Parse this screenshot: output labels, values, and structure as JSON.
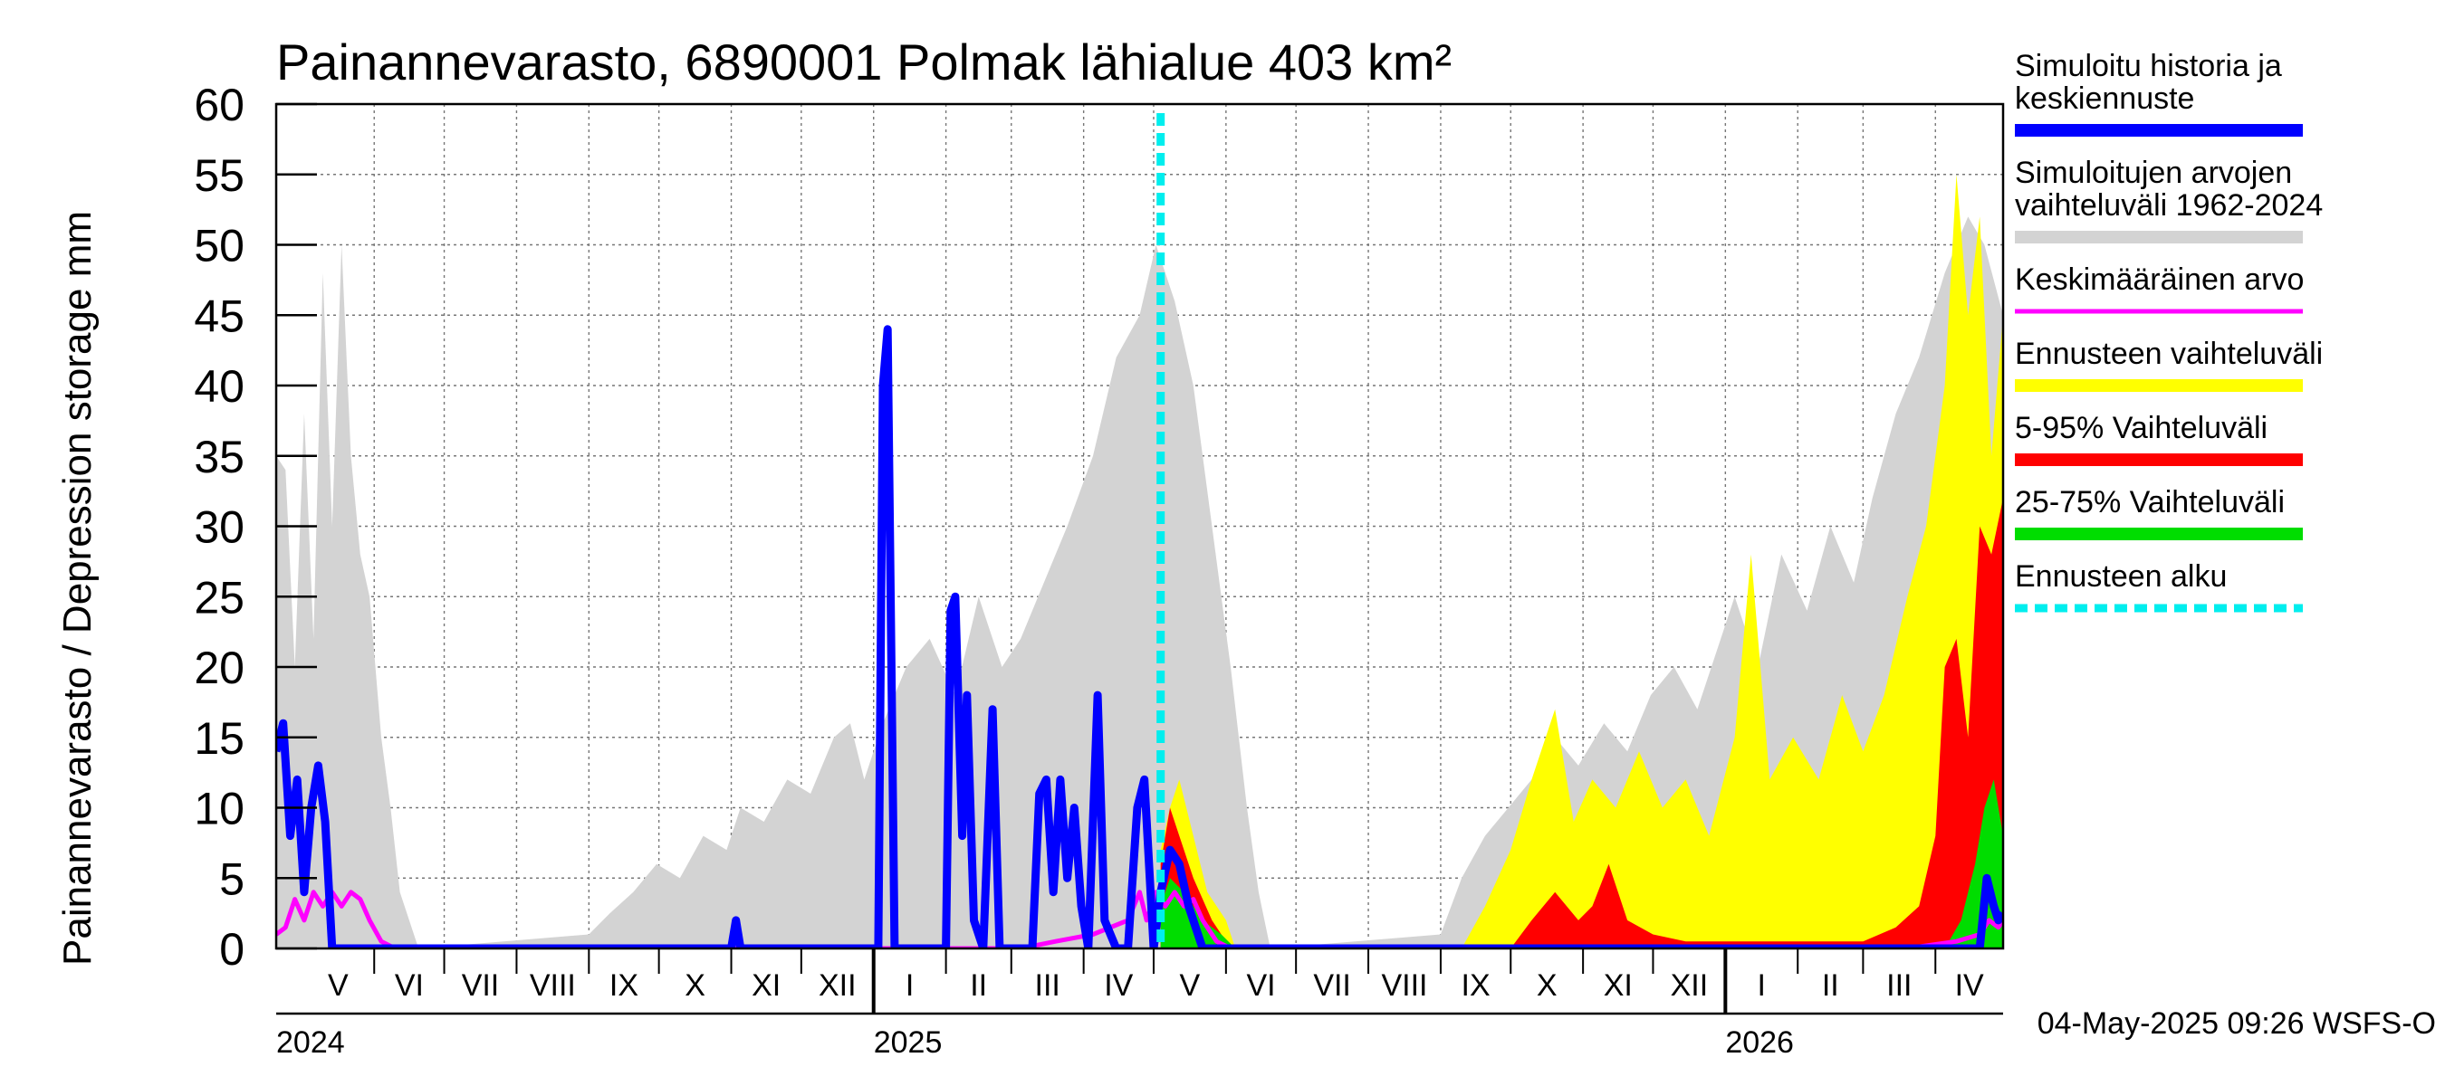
{
  "chart_data": {
    "type": "area",
    "title": "Painannevarasto, 6890001 Polmak lähialue 403 km²",
    "ylabel": "Painannevarasto / Depression storage    mm",
    "ylim": [
      0,
      60
    ],
    "yticks": [
      0,
      5,
      10,
      15,
      20,
      25,
      30,
      35,
      40,
      45,
      50,
      55,
      60
    ],
    "x_range": [
      "2024-04-20",
      "2026-04-30"
    ],
    "forecast_start": "2025-05-04",
    "months": [
      {
        "label": "V",
        "start": "2024-05-01"
      },
      {
        "label": "VI",
        "start": "2024-06-01"
      },
      {
        "label": "VII",
        "start": "2024-07-01"
      },
      {
        "label": "VIII",
        "start": "2024-08-01"
      },
      {
        "label": "IX",
        "start": "2024-09-01"
      },
      {
        "label": "X",
        "start": "2024-10-01"
      },
      {
        "label": "XI",
        "start": "2024-11-01"
      },
      {
        "label": "XII",
        "start": "2024-12-01"
      },
      {
        "label": "I",
        "start": "2025-01-01"
      },
      {
        "label": "II",
        "start": "2025-02-01"
      },
      {
        "label": "III",
        "start": "2025-03-01"
      },
      {
        "label": "IV",
        "start": "2025-04-01"
      },
      {
        "label": "V",
        "start": "2025-05-01"
      },
      {
        "label": "VI",
        "start": "2025-06-01"
      },
      {
        "label": "VII",
        "start": "2025-07-01"
      },
      {
        "label": "VIII",
        "start": "2025-08-01"
      },
      {
        "label": "IX",
        "start": "2025-09-01"
      },
      {
        "label": "X",
        "start": "2025-10-01"
      },
      {
        "label": "XI",
        "start": "2025-11-01"
      },
      {
        "label": "XII",
        "start": "2025-12-01"
      },
      {
        "label": "I",
        "start": "2026-01-01"
      },
      {
        "label": "II",
        "start": "2026-02-01"
      },
      {
        "label": "III",
        "start": "2026-03-01"
      },
      {
        "label": "IV",
        "start": "2026-04-01"
      }
    ],
    "years": [
      {
        "label": "2024",
        "at": "2024-04-20"
      },
      {
        "label": "2025",
        "at": "2025-01-01"
      },
      {
        "label": "2026",
        "at": "2026-01-01"
      }
    ],
    "series": [
      {
        "name": "Simuloitujen arvojen vaihteluväli 1962-2024",
        "kind": "range",
        "color": "#d3d3d3",
        "points": [
          [
            "2024-04-20",
            35
          ],
          [
            "2024-04-24",
            34
          ],
          [
            "2024-04-28",
            20
          ],
          [
            "2024-05-02",
            38
          ],
          [
            "2024-05-06",
            22
          ],
          [
            "2024-05-10",
            48
          ],
          [
            "2024-05-14",
            30
          ],
          [
            "2024-05-18",
            50
          ],
          [
            "2024-05-22",
            35
          ],
          [
            "2024-05-26",
            28
          ],
          [
            "2024-05-30",
            25
          ],
          [
            "2024-06-04",
            15
          ],
          [
            "2024-06-08",
            10
          ],
          [
            "2024-06-12",
            4
          ],
          [
            "2024-06-16",
            2
          ],
          [
            "2024-06-20",
            0
          ],
          [
            "2024-09-01",
            1
          ],
          [
            "2024-09-10",
            2.5
          ],
          [
            "2024-09-20",
            4
          ],
          [
            "2024-09-30",
            6
          ],
          [
            "2024-10-10",
            5
          ],
          [
            "2024-10-20",
            8
          ],
          [
            "2024-10-30",
            7
          ],
          [
            "2024-11-05",
            10
          ],
          [
            "2024-11-15",
            9
          ],
          [
            "2024-11-25",
            12
          ],
          [
            "2024-12-05",
            11
          ],
          [
            "2024-12-15",
            15
          ],
          [
            "2024-12-22",
            16
          ],
          [
            "2024-12-28",
            12
          ],
          [
            "2025-01-05",
            16
          ],
          [
            "2025-01-15",
            20
          ],
          [
            "2025-01-25",
            22
          ],
          [
            "2025-02-05",
            18
          ],
          [
            "2025-02-15",
            25
          ],
          [
            "2025-02-25",
            20
          ],
          [
            "2025-03-05",
            22
          ],
          [
            "2025-03-15",
            26
          ],
          [
            "2025-03-25",
            30
          ],
          [
            "2025-04-05",
            35
          ],
          [
            "2025-04-15",
            42
          ],
          [
            "2025-04-25",
            45
          ],
          [
            "2025-05-02",
            50
          ],
          [
            "2025-05-10",
            46
          ],
          [
            "2025-05-18",
            40
          ],
          [
            "2025-05-26",
            30
          ],
          [
            "2025-06-03",
            20
          ],
          [
            "2025-06-10",
            10
          ],
          [
            "2025-06-15",
            4
          ],
          [
            "2025-06-20",
            0
          ],
          [
            "2025-09-01",
            1
          ],
          [
            "2025-09-10",
            5
          ],
          [
            "2025-09-20",
            8
          ],
          [
            "2025-09-30",
            10
          ],
          [
            "2025-10-10",
            12
          ],
          [
            "2025-10-20",
            15
          ],
          [
            "2025-10-30",
            13
          ],
          [
            "2025-11-10",
            16
          ],
          [
            "2025-11-20",
            14
          ],
          [
            "2025-11-30",
            18
          ],
          [
            "2025-12-10",
            20
          ],
          [
            "2025-12-20",
            17
          ],
          [
            "2025-12-30",
            22
          ],
          [
            "2026-01-05",
            25
          ],
          [
            "2026-01-15",
            20
          ],
          [
            "2026-01-25",
            28
          ],
          [
            "2026-02-05",
            24
          ],
          [
            "2026-02-15",
            30
          ],
          [
            "2026-02-25",
            26
          ],
          [
            "2026-03-05",
            32
          ],
          [
            "2026-03-15",
            38
          ],
          [
            "2026-03-25",
            42
          ],
          [
            "2026-04-05",
            48
          ],
          [
            "2026-04-15",
            52
          ],
          [
            "2026-04-22",
            50
          ],
          [
            "2026-04-30",
            45
          ]
        ]
      },
      {
        "name": "Ennusteen vaihteluväli",
        "kind": "range",
        "color": "#ffff00",
        "points": [
          [
            "2025-05-04",
            7
          ],
          [
            "2025-05-08",
            10
          ],
          [
            "2025-05-12",
            12
          ],
          [
            "2025-05-18",
            8
          ],
          [
            "2025-05-24",
            4
          ],
          [
            "2025-06-01",
            2
          ],
          [
            "2025-06-05",
            0
          ],
          [
            "2025-09-10",
            0
          ],
          [
            "2025-09-20",
            3
          ],
          [
            "2025-10-01",
            7
          ],
          [
            "2025-10-10",
            12
          ],
          [
            "2025-10-20",
            17
          ],
          [
            "2025-10-28",
            9
          ],
          [
            "2025-11-05",
            12
          ],
          [
            "2025-11-15",
            10
          ],
          [
            "2025-11-25",
            14
          ],
          [
            "2025-12-05",
            10
          ],
          [
            "2025-12-15",
            12
          ],
          [
            "2025-12-25",
            8
          ],
          [
            "2026-01-05",
            15
          ],
          [
            "2026-01-12",
            28
          ],
          [
            "2026-01-20",
            12
          ],
          [
            "2026-01-30",
            15
          ],
          [
            "2026-02-10",
            12
          ],
          [
            "2026-02-20",
            18
          ],
          [
            "2026-03-01",
            14
          ],
          [
            "2026-03-10",
            18
          ],
          [
            "2026-03-20",
            25
          ],
          [
            "2026-03-28",
            30
          ],
          [
            "2026-04-05",
            40
          ],
          [
            "2026-04-10",
            55
          ],
          [
            "2026-04-15",
            45
          ],
          [
            "2026-04-20",
            52
          ],
          [
            "2026-04-25",
            35
          ],
          [
            "2026-04-30",
            45
          ]
        ]
      },
      {
        "name": "5-95% Vaihteluväli",
        "kind": "range",
        "color": "#ff0000",
        "points": [
          [
            "2025-05-04",
            6
          ],
          [
            "2025-05-08",
            10
          ],
          [
            "2025-05-12",
            8
          ],
          [
            "2025-05-18",
            5
          ],
          [
            "2025-05-26",
            2
          ],
          [
            "2025-06-03",
            0
          ],
          [
            "2025-10-01",
            0
          ],
          [
            "2025-10-10",
            2
          ],
          [
            "2025-10-20",
            4
          ],
          [
            "2025-10-30",
            2
          ],
          [
            "2025-11-05",
            3
          ],
          [
            "2025-11-12",
            6
          ],
          [
            "2025-11-20",
            2
          ],
          [
            "2025-12-01",
            1
          ],
          [
            "2025-12-15",
            0.5
          ],
          [
            "2026-01-01",
            0.5
          ],
          [
            "2026-03-01",
            0.5
          ],
          [
            "2026-03-15",
            1.5
          ],
          [
            "2026-03-25",
            3
          ],
          [
            "2026-04-01",
            8
          ],
          [
            "2026-04-05",
            20
          ],
          [
            "2026-04-10",
            22
          ],
          [
            "2026-04-15",
            15
          ],
          [
            "2026-04-20",
            30
          ],
          [
            "2026-04-25",
            28
          ],
          [
            "2026-04-30",
            32
          ]
        ]
      },
      {
        "name": "25-75% Vaihteluväli",
        "kind": "range",
        "color": "#00dd00",
        "points": [
          [
            "2025-05-04",
            3
          ],
          [
            "2025-05-08",
            5
          ],
          [
            "2025-05-14",
            4
          ],
          [
            "2025-05-22",
            2
          ],
          [
            "2025-05-30",
            1
          ],
          [
            "2025-06-05",
            0
          ],
          [
            "2026-04-05",
            0
          ],
          [
            "2026-04-12",
            2
          ],
          [
            "2026-04-18",
            6
          ],
          [
            "2026-04-22",
            10
          ],
          [
            "2026-04-26",
            12
          ],
          [
            "2026-04-30",
            8
          ]
        ]
      },
      {
        "name": "Keskimääräinen arvo",
        "kind": "line",
        "color": "#ff00ff",
        "points": [
          [
            "2024-04-20",
            1
          ],
          [
            "2024-04-24",
            1.5
          ],
          [
            "2024-04-28",
            3.5
          ],
          [
            "2024-05-02",
            2
          ],
          [
            "2024-05-06",
            4
          ],
          [
            "2024-05-10",
            3
          ],
          [
            "2024-05-14",
            4
          ],
          [
            "2024-05-18",
            3
          ],
          [
            "2024-05-22",
            4
          ],
          [
            "2024-05-26",
            3.5
          ],
          [
            "2024-05-30",
            2
          ],
          [
            "2024-06-04",
            0.5
          ],
          [
            "2024-06-10",
            0
          ],
          [
            "2025-03-05",
            0
          ],
          [
            "2025-03-20",
            0.5
          ],
          [
            "2025-04-05",
            1
          ],
          [
            "2025-04-20",
            2
          ],
          [
            "2025-04-25",
            4
          ],
          [
            "2025-04-28",
            2
          ],
          [
            "2025-05-02",
            4
          ],
          [
            "2025-05-06",
            3
          ],
          [
            "2025-05-10",
            4
          ],
          [
            "2025-05-14",
            3
          ],
          [
            "2025-05-18",
            3.5
          ],
          [
            "2025-05-22",
            2
          ],
          [
            "2025-05-28",
            0.5
          ],
          [
            "2025-06-03",
            0
          ],
          [
            "2026-03-20",
            0
          ],
          [
            "2026-04-10",
            0.5
          ],
          [
            "2026-04-20",
            1
          ],
          [
            "2026-04-24",
            2
          ],
          [
            "2026-04-28",
            1.5
          ],
          [
            "2026-04-30",
            2
          ]
        ]
      },
      {
        "name": "Simuloitu historia ja keskiennuste",
        "kind": "line",
        "color": "#0000ff",
        "points": [
          [
            "2024-04-20",
            14
          ],
          [
            "2024-04-23",
            16
          ],
          [
            "2024-04-26",
            8
          ],
          [
            "2024-04-29",
            12
          ],
          [
            "2024-05-02",
            4
          ],
          [
            "2024-05-05",
            10
          ],
          [
            "2024-05-08",
            13
          ],
          [
            "2024-05-11",
            9
          ],
          [
            "2024-05-14",
            0
          ],
          [
            "2024-11-01",
            0
          ],
          [
            "2024-11-03",
            2
          ],
          [
            "2024-11-05",
            0
          ],
          [
            "2025-01-03",
            0
          ],
          [
            "2025-01-05",
            40
          ],
          [
            "2025-01-07",
            44
          ],
          [
            "2025-01-10",
            0
          ],
          [
            "2025-02-01",
            0
          ],
          [
            "2025-02-03",
            24
          ],
          [
            "2025-02-05",
            25
          ],
          [
            "2025-02-08",
            8
          ],
          [
            "2025-02-10",
            18
          ],
          [
            "2025-02-13",
            2
          ],
          [
            "2025-02-17",
            0
          ],
          [
            "2025-02-21",
            17
          ],
          [
            "2025-02-24",
            0
          ],
          [
            "2025-03-10",
            0
          ],
          [
            "2025-03-13",
            11
          ],
          [
            "2025-03-16",
            12
          ],
          [
            "2025-03-19",
            4
          ],
          [
            "2025-03-22",
            12
          ],
          [
            "2025-03-25",
            5
          ],
          [
            "2025-03-28",
            10
          ],
          [
            "2025-03-31",
            3
          ],
          [
            "2025-04-03",
            0
          ],
          [
            "2025-04-07",
            18
          ],
          [
            "2025-04-10",
            2
          ],
          [
            "2025-04-15",
            0
          ],
          [
            "2025-04-20",
            0
          ],
          [
            "2025-04-24",
            10
          ],
          [
            "2025-04-27",
            12
          ],
          [
            "2025-05-01",
            0
          ],
          [
            "2025-05-04",
            4
          ],
          [
            "2025-05-08",
            7
          ],
          [
            "2025-05-12",
            6
          ],
          [
            "2025-05-16",
            3
          ],
          [
            "2025-05-22",
            0
          ],
          [
            "2026-04-20",
            0
          ],
          [
            "2026-04-23",
            5
          ],
          [
            "2026-04-26",
            3
          ],
          [
            "2026-04-28",
            2
          ],
          [
            "2026-04-30",
            2.5
          ]
        ]
      },
      {
        "name": "Ennusteen alku",
        "kind": "vline",
        "color": "#00eeee",
        "at": "2025-05-04"
      }
    ],
    "legend": [
      {
        "label_lines": [
          "Simuloitu historia ja",
          "keskiennuste"
        ],
        "color": "#0000ff",
        "style": "thick"
      },
      {
        "label_lines": [
          "Simuloitujen arvojen",
          "vaihteluväli 1962-2024"
        ],
        "color": "#d3d3d3",
        "style": "thick"
      },
      {
        "label_lines": [
          "Keskimääräinen arvo"
        ],
        "color": "#ff00ff",
        "style": "thin"
      },
      {
        "label_lines": [
          "Ennusteen vaihteluväli"
        ],
        "color": "#ffff00",
        "style": "thick"
      },
      {
        "label_lines": [
          "5-95% Vaihteluväli"
        ],
        "color": "#ff0000",
        "style": "thick"
      },
      {
        "label_lines": [
          "25-75% Vaihteluväli"
        ],
        "color": "#00dd00",
        "style": "thick"
      },
      {
        "label_lines": [
          "Ennusteen alku"
        ],
        "color": "#00eeee",
        "style": "dashed"
      }
    ],
    "legend_position": "right",
    "footer": "04-May-2025 09:26 WSFS-O"
  }
}
